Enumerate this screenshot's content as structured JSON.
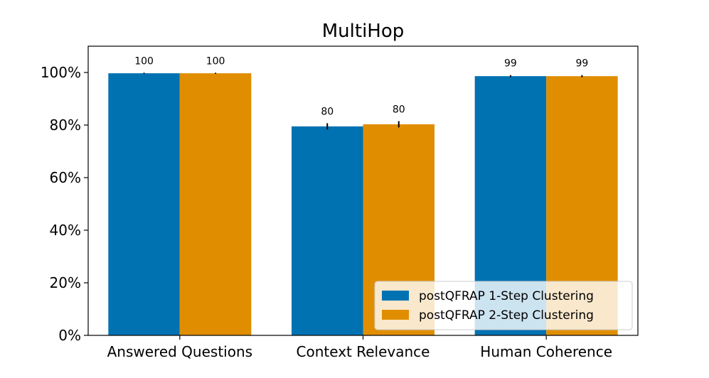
{
  "chart_data": {
    "type": "bar",
    "title": "MultiHop",
    "xlabel": "",
    "ylabel": "",
    "categories": [
      "Answered Questions",
      "Context Relevance",
      "Human Coherence"
    ],
    "series": [
      {
        "name": "postQFRAP 1-Step Clustering",
        "color": "#0072B2",
        "values": [
          99.7,
          79.5,
          98.6
        ],
        "labels": [
          "100",
          "80",
          "99"
        ],
        "error": [
          0.2,
          1.2,
          0.4
        ]
      },
      {
        "name": "postQFRAP 2-Step Clustering",
        "color": "#E08E00",
        "values": [
          99.7,
          80.3,
          98.6
        ],
        "labels": [
          "100",
          "80",
          "99"
        ],
        "error": [
          0.2,
          1.2,
          0.4
        ]
      }
    ],
    "ylim": [
      0,
      110
    ],
    "yticks": [
      0,
      20,
      40,
      60,
      80,
      100
    ],
    "ytick_labels": [
      "0%",
      "20%",
      "40%",
      "60%",
      "80%",
      "100%"
    ],
    "grid": false,
    "legend_position": "lower-right"
  }
}
